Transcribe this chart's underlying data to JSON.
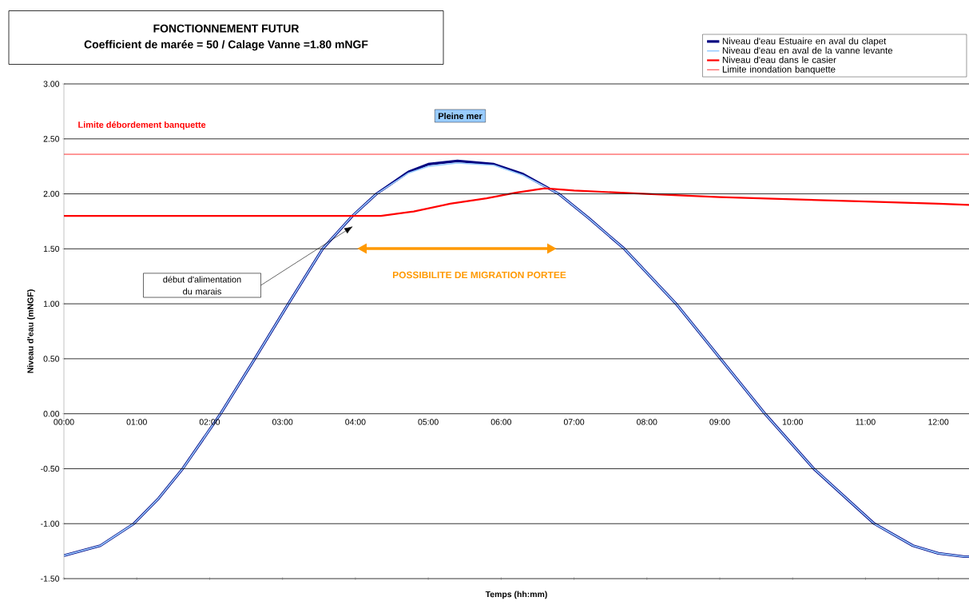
{
  "chart_data": {
    "type": "line",
    "title": "FONCTIONNEMENT FUTUR",
    "subtitle": "Coefficient de marée = 50 / Calage Vanne =1.80 mNGF",
    "xlabel": "Temps (hh:mm)",
    "ylabel": "Niveau d'eau (mNGF)",
    "xlim": [
      0,
      12.42
    ],
    "ylim": [
      -1.5,
      3.0
    ],
    "xticks": [
      {
        "value": 0,
        "label": "00:00"
      },
      {
        "value": 1,
        "label": "01:00"
      },
      {
        "value": 2,
        "label": "02:00"
      },
      {
        "value": 3,
        "label": "03:00"
      },
      {
        "value": 4,
        "label": "04:00"
      },
      {
        "value": 5,
        "label": "05:00"
      },
      {
        "value": 6,
        "label": "06:00"
      },
      {
        "value": 7,
        "label": "07:00"
      },
      {
        "value": 8,
        "label": "08:00"
      },
      {
        "value": 9,
        "label": "09:00"
      },
      {
        "value": 10,
        "label": "10:00"
      },
      {
        "value": 11,
        "label": "11:00"
      },
      {
        "value": 12,
        "label": "12:00"
      }
    ],
    "yticks": [
      {
        "value": -1.5,
        "label": "-1.50"
      },
      {
        "value": -1.0,
        "label": "-1.00"
      },
      {
        "value": -0.5,
        "label": "-0.50"
      },
      {
        "value": 0,
        "label": "0.00"
      },
      {
        "value": 0.5,
        "label": "0.50"
      },
      {
        "value": 1.0,
        "label": "1.00"
      },
      {
        "value": 1.5,
        "label": "1.50"
      },
      {
        "value": 2.0,
        "label": "2.00"
      },
      {
        "value": 2.5,
        "label": "2.50"
      },
      {
        "value": 3.0,
        "label": "3.00"
      }
    ],
    "grid": "y",
    "legend": "top right",
    "series": [
      {
        "name": "Niveau d'eau Estuaire en aval du clapet",
        "color": "#000080",
        "x": [
          0,
          0.5,
          0.96,
          1.3,
          1.63,
          2.15,
          2.62,
          3.08,
          3.55,
          3.96,
          4.29,
          4.73,
          5.0,
          5.4,
          5.9,
          6.3,
          6.79,
          7.2,
          7.69,
          8.4,
          9.01,
          9.62,
          10.29,
          11.12,
          11.65,
          12.0,
          12.36,
          12.42
        ],
        "values": [
          -1.29,
          -1.2,
          -1.0,
          -0.77,
          -0.5,
          0,
          0.5,
          1.0,
          1.5,
          1.8,
          2.0,
          2.2,
          2.27,
          2.3,
          2.27,
          2.18,
          2.0,
          1.78,
          1.5,
          1.0,
          0.5,
          0,
          -0.5,
          -1.0,
          -1.2,
          -1.27,
          -1.3,
          -1.3
        ]
      },
      {
        "name": "Niveau d'eau en aval de la vanne levante",
        "color": "#99ccff",
        "x": [
          0,
          0.5,
          0.96,
          1.3,
          1.63,
          2.15,
          2.62,
          3.08,
          3.55,
          3.96,
          4.29,
          4.73,
          5.0,
          5.4,
          5.9,
          6.3,
          6.79,
          7.2,
          7.69,
          8.4,
          9.01,
          9.62,
          10.29,
          11.12,
          11.65,
          12.0,
          12.36,
          12.42
        ],
        "values": [
          -1.29,
          -1.2,
          -1.0,
          -0.77,
          -0.5,
          0,
          0.5,
          1.0,
          1.5,
          1.8,
          2.0,
          2.19,
          2.25,
          2.28,
          2.26,
          2.17,
          2.0,
          1.78,
          1.5,
          1.0,
          0.5,
          0,
          -0.5,
          -1.0,
          -1.2,
          -1.27,
          -1.3,
          -1.3
        ]
      },
      {
        "name": "Niveau d'eau dans le casier",
        "color": "#ff0000",
        "x": [
          0,
          4.35,
          4.8,
          5.3,
          5.8,
          6.2,
          6.6,
          7.0,
          8.0,
          9.0,
          10.0,
          11.0,
          12.0,
          12.42
        ],
        "values": [
          1.8,
          1.8,
          1.84,
          1.91,
          1.96,
          2.01,
          2.05,
          2.03,
          2.0,
          1.97,
          1.95,
          1.93,
          1.91,
          1.9
        ]
      },
      {
        "name": "Limite inondation banquette",
        "color": "#ff3333",
        "x": [
          0,
          12.42
        ],
        "values": [
          2.36,
          2.36
        ]
      }
    ],
    "annotations": [
      "Limite débordement banquette",
      "Pleine mer",
      "début d'alimentation du marais",
      "POSSIBILITE DE MIGRATION PORTEE"
    ]
  }
}
